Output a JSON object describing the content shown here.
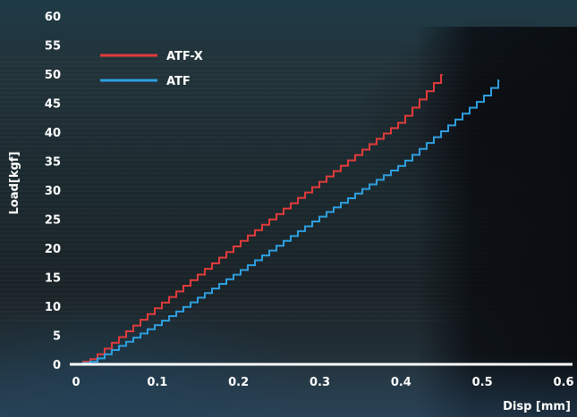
{
  "chart_data": {
    "type": "line",
    "xlabel": "Disp [mm]",
    "ylabel": "Load[kgf]",
    "xlim": [
      0,
      0.6
    ],
    "ylim": [
      0,
      60
    ],
    "x_ticks": [
      "0",
      "0.1",
      "0.2",
      "0.3",
      "0.4",
      "0.5",
      "0.6"
    ],
    "y_ticks": [
      "0",
      "5",
      "10",
      "15",
      "20",
      "25",
      "30",
      "35",
      "40",
      "45",
      "50",
      "55",
      "60"
    ],
    "legend_position": "top-left",
    "line_style": "step",
    "series": [
      {
        "name": "ATF-X",
        "color": "#e23b3b",
        "x": [
          0,
          0.02,
          0.1,
          0.2,
          0.3,
          0.4,
          0.45
        ],
        "y": [
          0,
          1,
          10,
          21,
          31.5,
          42,
          50
        ]
      },
      {
        "name": "ATF",
        "color": "#2e9fe0",
        "x": [
          0,
          0.02,
          0.1,
          0.2,
          0.3,
          0.4,
          0.5,
          0.52
        ],
        "y": [
          0,
          0.5,
          7,
          16,
          25.5,
          34.5,
          46,
          49
        ]
      }
    ]
  }
}
